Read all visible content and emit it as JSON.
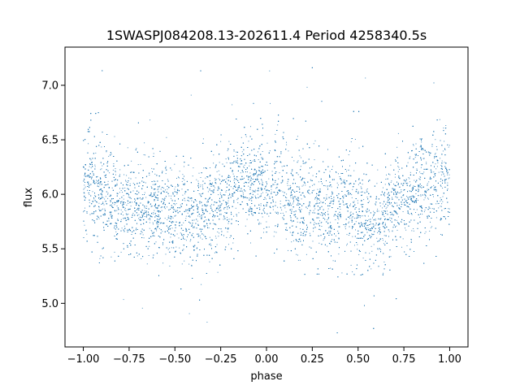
{
  "chart_data": {
    "type": "scatter",
    "title": "1SWASPJ084208.13-202611.4 Period 4258340.5s",
    "xlabel": "phase",
    "ylabel": "flux",
    "xlim": [
      -1.1,
      1.1
    ],
    "ylim": [
      4.6,
      7.35
    ],
    "x_ticks": [
      -1.0,
      -0.75,
      -0.5,
      -0.25,
      0.0,
      0.25,
      0.5,
      0.75,
      1.0
    ],
    "x_tick_labels": [
      "−1.00",
      "−0.75",
      "−0.50",
      "−0.25",
      "0.00",
      "0.25",
      "0.50",
      "0.75",
      "1.00"
    ],
    "y_ticks": [
      5.0,
      5.5,
      6.0,
      6.5,
      7.0
    ],
    "y_tick_labels": [
      "5.0",
      "5.5",
      "6.0",
      "6.5",
      "7.0"
    ],
    "grid": false,
    "marker_color": "#1f77b4",
    "series": [
      {
        "phase_range": [
          -1.0,
          1.0
        ],
        "profile_phase": [
          0.0,
          0.05,
          0.1,
          0.15,
          0.2,
          0.25,
          0.3,
          0.35,
          0.4,
          0.45,
          0.5,
          0.55,
          0.6,
          0.65,
          0.7,
          0.75,
          0.8,
          0.85,
          0.9,
          0.95,
          1.0
        ],
        "profile_mean_flux": [
          6.1,
          6.08,
          6.02,
          5.95,
          5.9,
          5.92,
          5.9,
          5.85,
          5.9,
          5.88,
          5.85,
          5.78,
          5.75,
          5.82,
          5.9,
          5.95,
          6.02,
          6.08,
          6.12,
          6.1,
          6.1
        ],
        "scatter_std": 0.25,
        "outlier_range": [
          4.7,
          7.2
        ]
      }
    ]
  }
}
